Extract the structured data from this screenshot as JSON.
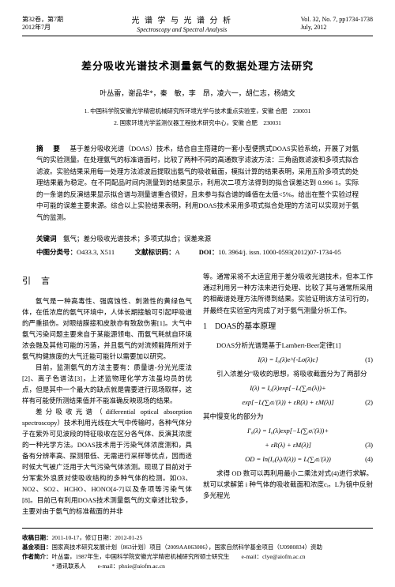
{
  "header": {
    "volIssue": "第32卷，第7期",
    "date": "2012年7月",
    "journalCn": "光 谱 学 与 光 谱 分 析",
    "journalEn": "Spectroscopy and Spectral Analysis",
    "volEn": "Vol. 32, No. 7, pp1734-1738",
    "dateEn": "July, 2012"
  },
  "title": "差分吸收光谱技术测量氨气的数据处理方法研究",
  "authors": "叶丛雷，谢品华*，秦　敏，李　昂，凌六一，胡仁志，杨靖文",
  "affils": [
    "1. 中国科学院安徽光学精密机械研究所环境光学与技术重点实验室，安徽 合肥　230031",
    "2. 国家环境光学监测仪器工程技术研究中心，安徽 合肥　230031"
  ],
  "abstract": "基于差分吸收光谱（DOAS）技术，结合自主搭建的一套小型便携式DOAS实验系统，开展了对氨气的实验测量。在处理氨气的标准谱面时，比较了两种不同的高通数字滤波方法：三角函数滤波和多项式拟合滤波。实验结果采用每一处理方法滤波后提取出氨气的吸收截面，模拟计算的结果表明，采用五阶多项式的处理结果最为稳定。在不同配品时间内测量到的结果显示，利用次二项方法得到的拟合误差达到 0.996 1。实际的一条谱的反演结果显示拟合谱与测量谱重合很好，且未参与拟合谱的峰值在太值<5%。给出在整个实验过程中可能的误差主要来源。综合以上实验结果表明，利用DOAS技术采用多项式拟合处理的方法可以实现对于氨气的监测。",
  "keywords": "氨气；差分吸收光谱技术；多项式拟合；误差来源",
  "classNo": "O433.3, X511",
  "docCode": "A",
  "doi": "10. 3964/j. issn. 1000-0593(2012)07-1734-05",
  "introTitle": "引　言",
  "intro": [
    "氨气是一种高毒性、强腐蚀性、刺激性的黄绿色气体，在低浓度的氨气环境中，人体长期接触可引起呼吸道的严重损伤。对眼结膜接和皮肤亦有致敌伤害[1]。大气中氨气污染问题主要来自于某能源领电、而氨气耗就自环境浓会融及其他可能的污落，并且氨气的对流频能降所对于氨气构健族废的大气迁能可能针以需要加以研究。",
    "目前，监测氨气的方法主要有：质量谱-分光光度法[2]、离子色谱法[3]，上述监物理化学方法虽均员的优点，但是其中一个最大的缺点就是需要进行现场取样，这样有可能使所测结果值并不能准确反映现场的结果。",
    "差分吸收光谱（differential optical absorption spectroscopy）技术利用光线在大气中传输时，各种气体分子在紫外可见波段的特征吸收在区分各气体、反演其浓度的一种光学方法。DOAS技术用于污染气体浓度测和，具备有分辨率高、探测限低、无需进行采样等优点，因而适时候大气被广泛用于大气污染气体浓测。现现了目前对于分军紫外浪质对使吸收结构的多种气体的检测。如O3、NO2、SO2、HCHO、HONO[4-7]以及条项等污染气体[8]。目前已有利用DOAS技术测量氨气的文章述比较多，主要对由于氨气的标准截面的并非"
  ],
  "intro2": [
    "等。通常采将不太适宜用于差分吸收光谱技术，但本工作通过利用另一种方法来进行处理、比较了其与通常所采用的相截谱处理方法所得到结果。实验证明该方法可行的，并最终在实验室内完成了对于氨气测量分析工作。"
  ],
  "sec1Title": "1　DOAS的基本原理",
  "sec1": [
    "DOAS分析光谱是基于Lambert-Beer定律[1]",
    "引入浓差分\"吸收的思想，将吸收截面分为了两部分"
  ],
  "eq1": "I(λ) = I₀(λ)e^{-Lσ(λ)c}",
  "eq2": "I(λ) = I₀(λ)exp[−L(∑ᵢσᵢ(λ))+",
  "eq2b": "exp[−L(∑ᵢσᵢ'(λ)) + εR(λ) + εM(λ)]",
  "sec1b": "其中慢变化的部分为",
  "eq3": "I'₀(λ) = I₀(λ)exp[−L(∑ᵢσᵢ'(λ))+",
  "eq3b": "+ εR(λ) + εM(λ)]",
  "eq4": "OD = ln(I₀(λ)/I(λ)) = L(∑ᵢσᵢ'(λ))",
  "sec1c": "求得 OD 数可以再利用最小二乘法对式(4)进行求解。就可以求解第 i 种气体的吸收截面和浓度cᵢ。L为镜中反射多光程光",
  "footer": {
    "recv": "2011-10-17，修订日期：2012-01-25",
    "fund": "国家高技术研究发展计划（863计划）项目（2009AA063006），国家自然科学基金项目（U0980834）资助",
    "author": "叶丛雷，1987年生，中国科学院安徽光学精密机械研究所硕士研究生　　e-mail：clye@aiofm.ac.cn",
    "corr": "* 通讯联系人　　e-mail：phxie@aiofm.ac.cn"
  }
}
